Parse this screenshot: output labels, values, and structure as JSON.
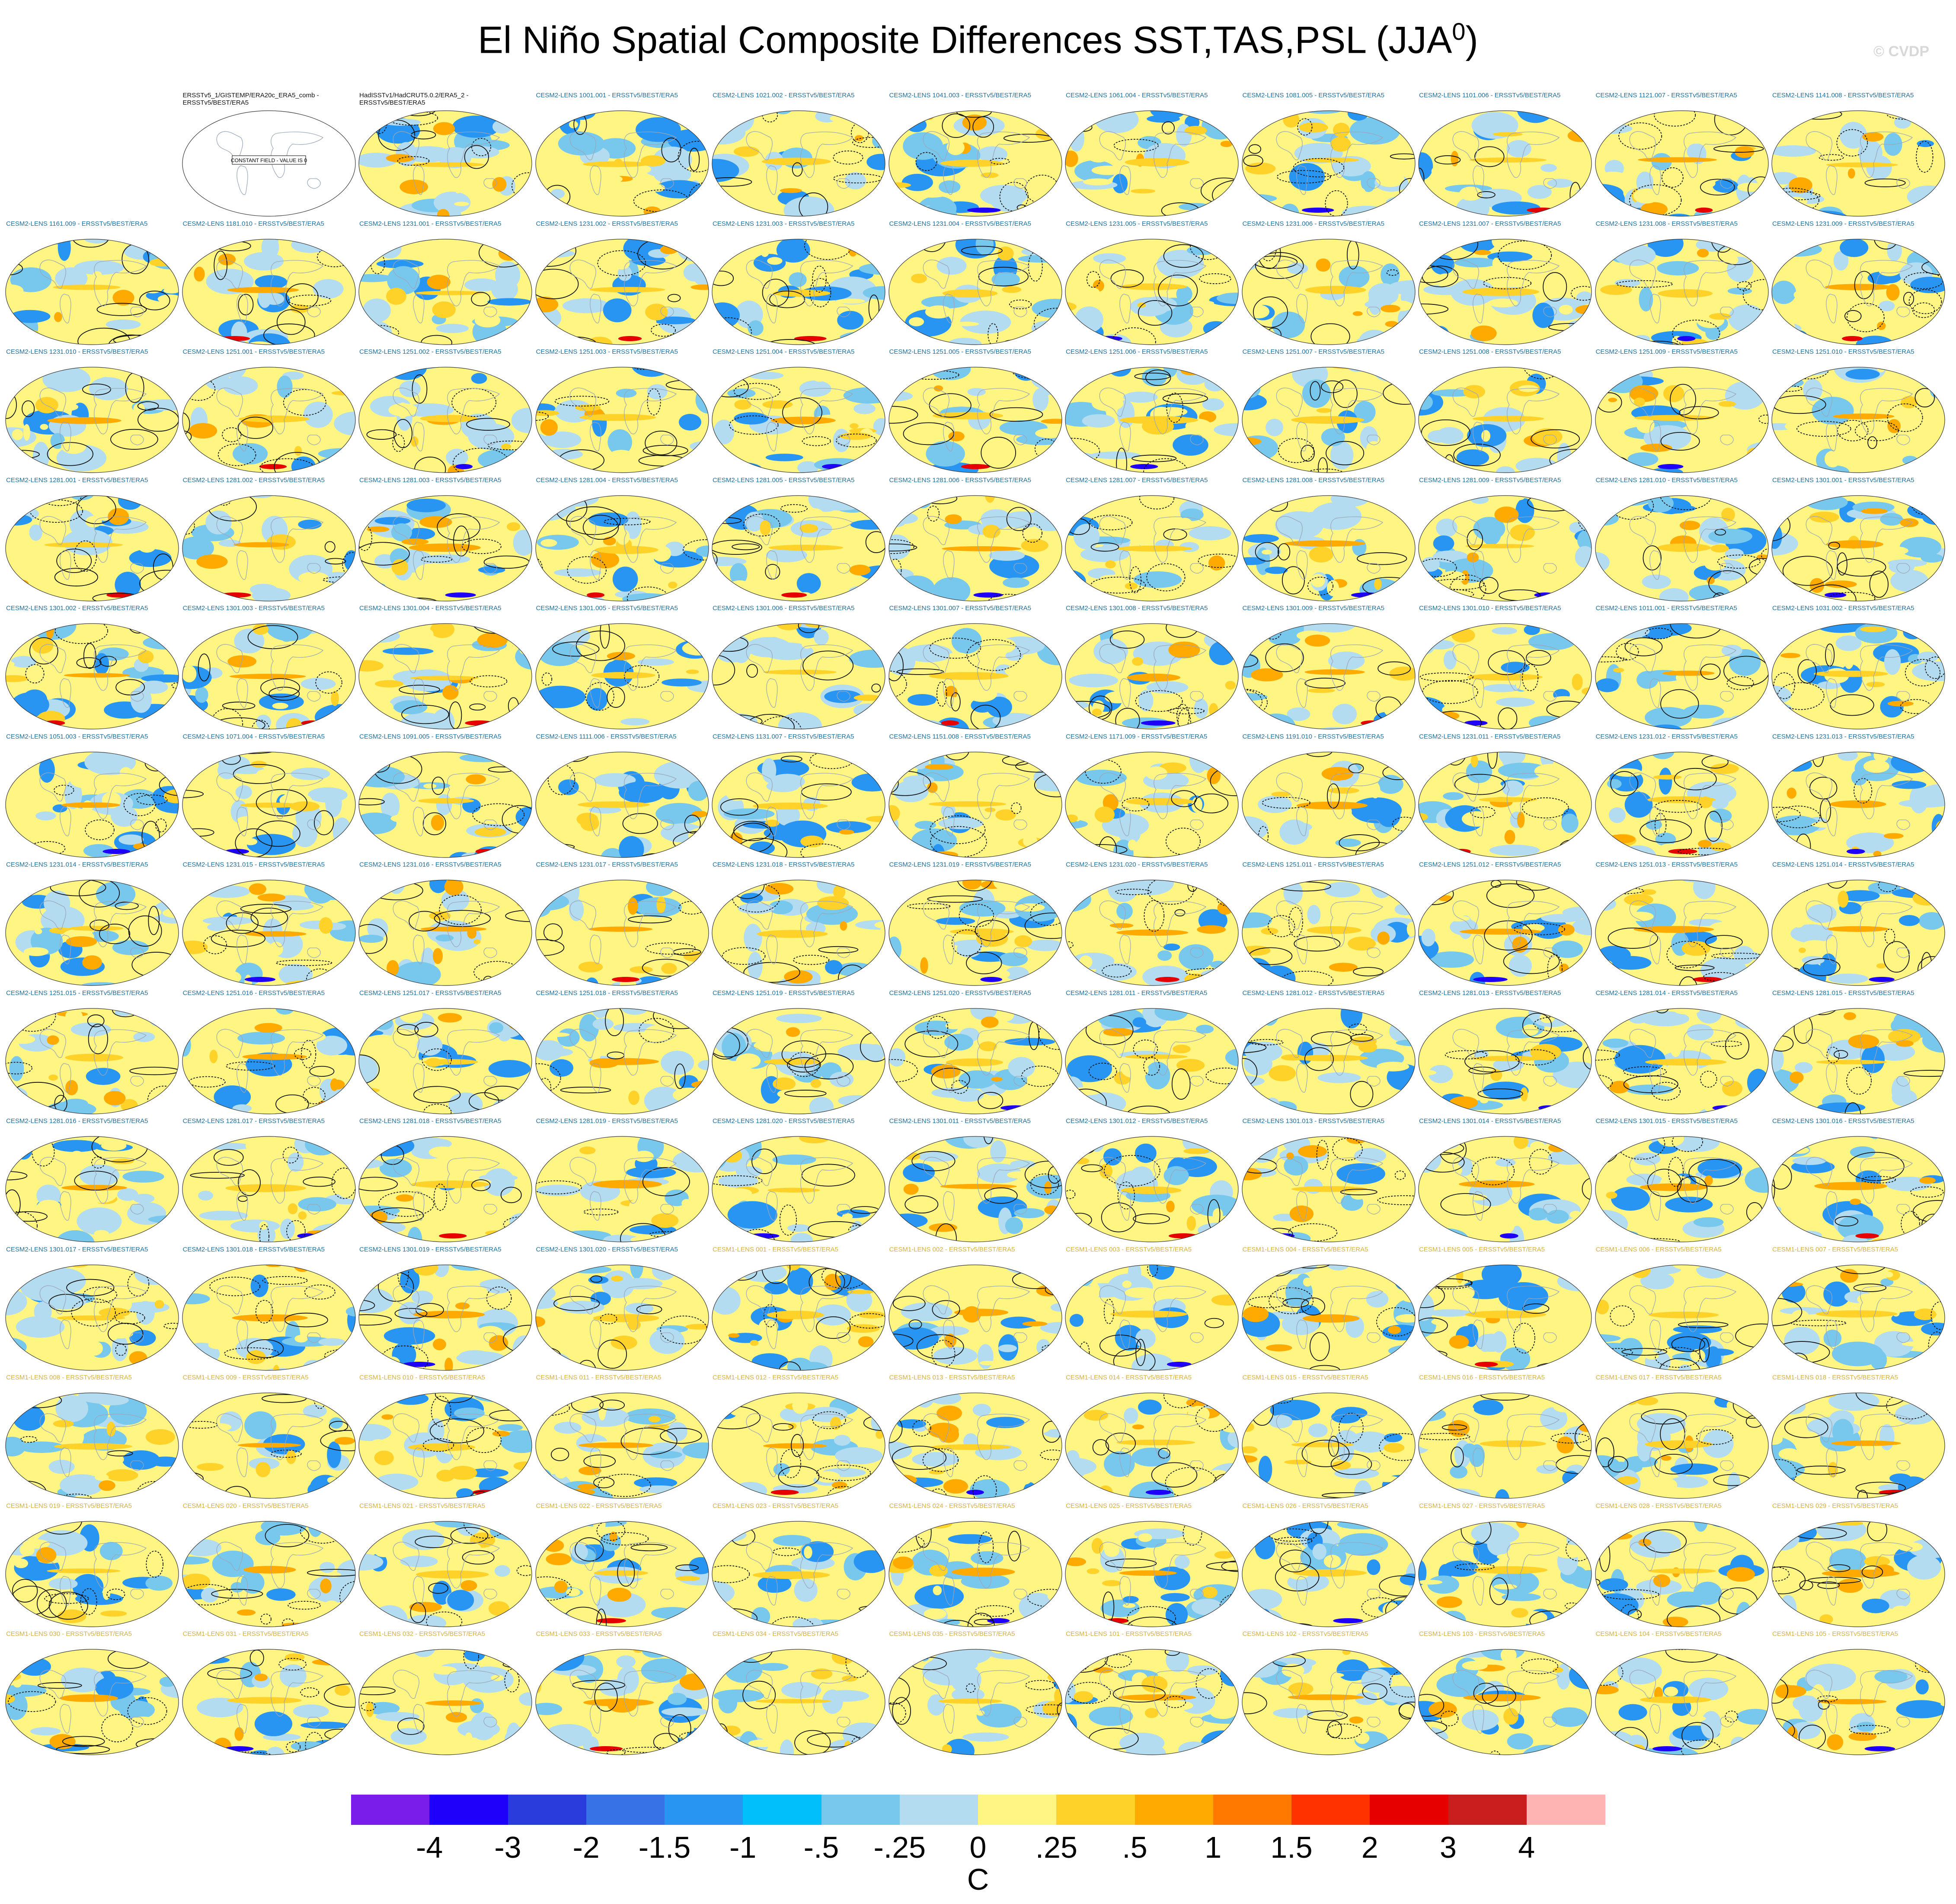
{
  "title": {
    "main": "El Niño Spatial Composite Differences SST,TAS,PSL (JJA",
    "sup": "0",
    "end": ")"
  },
  "watermark": "© CVDP",
  "chart_data": {
    "type": "heatmap",
    "title": "El Niño Spatial Composite Differences SST,TAS,PSL (JJA0)",
    "projection": "global Robinson map",
    "layout": {
      "columns": 11,
      "rows": 13
    },
    "panels": [
      {
        "label": "ERSSTv5_1/GISTEMP/ERA20c_ERA5_comb - ERSSTv5/BEST/ERA5",
        "kind": "obs",
        "note": "CONSTANT FIELD - VALUE IS 0"
      },
      {
        "label": "HadISSTv1/HadCRUT5.0.2/ERA5_2 - ERSSTv5/BEST/ERA5",
        "kind": "obs"
      },
      {
        "label": "CESM2-LENS 1001.001 - ERSSTv5/BEST/ERA5"
      },
      {
        "label": "CESM2-LENS 1021.002 - ERSSTv5/BEST/ERA5"
      },
      {
        "label": "CESM2-LENS 1041.003 - ERSSTv5/BEST/ERA5"
      },
      {
        "label": "CESM2-LENS 1061.004 - ERSSTv5/BEST/ERA5"
      },
      {
        "label": "CESM2-LENS 1081.005 - ERSSTv5/BEST/ERA5"
      },
      {
        "label": "CESM2-LENS 1101.006 - ERSSTv5/BEST/ERA5"
      },
      {
        "label": "CESM2-LENS 1121.007 - ERSSTv5/BEST/ERA5"
      },
      {
        "label": "CESM2-LENS 1141.008 - ERSSTv5/BEST/ERA5"
      },
      {
        "label": "CESM2-LENS 1161.009 - ERSSTv5/BEST/ERA5"
      },
      {
        "label": "CESM2-LENS 1181.010 - ERSSTv5/BEST/ERA5"
      },
      {
        "label": "CESM2-LENS 1231.001 - ERSSTv5/BEST/ERA5"
      },
      {
        "label": "CESM2-LENS 1231.002 - ERSSTv5/BEST/ERA5"
      },
      {
        "label": "CESM2-LENS 1231.003 - ERSSTv5/BEST/ERA5"
      },
      {
        "label": "CESM2-LENS 1231.004 - ERSSTv5/BEST/ERA5"
      },
      {
        "label": "CESM2-LENS 1231.005 - ERSSTv5/BEST/ERA5"
      },
      {
        "label": "CESM2-LENS 1231.006 - ERSSTv5/BEST/ERA5"
      },
      {
        "label": "CESM2-LENS 1231.007 - ERSSTv5/BEST/ERA5"
      },
      {
        "label": "CESM2-LENS 1231.008 - ERSSTv5/BEST/ERA5"
      },
      {
        "label": "CESM2-LENS 1231.009 - ERSSTv5/BEST/ERA5"
      },
      {
        "label": "CESM2-LENS 1231.010 - ERSSTv5/BEST/ERA5"
      },
      {
        "label": "CESM2-LENS 1251.001 - ERSSTv5/BEST/ERA5"
      },
      {
        "label": "CESM2-LENS 1251.002 - ERSSTv5/BEST/ERA5"
      },
      {
        "label": "CESM2-LENS 1251.003 - ERSSTv5/BEST/ERA5"
      },
      {
        "label": "CESM2-LENS 1251.004 - ERSSTv5/BEST/ERA5"
      },
      {
        "label": "CESM2-LENS 1251.005 - ERSSTv5/BEST/ERA5"
      },
      {
        "label": "CESM2-LENS 1251.006 - ERSSTv5/BEST/ERA5"
      },
      {
        "label": "CESM2-LENS 1251.007 - ERSSTv5/BEST/ERA5"
      },
      {
        "label": "CESM2-LENS 1251.008 - ERSSTv5/BEST/ERA5"
      },
      {
        "label": "CESM2-LENS 1251.009 - ERSSTv5/BEST/ERA5"
      },
      {
        "label": "CESM2-LENS 1251.010 - ERSSTv5/BEST/ERA5"
      },
      {
        "label": "CESM2-LENS 1281.001 - ERSSTv5/BEST/ERA5"
      },
      {
        "label": "CESM2-LENS 1281.002 - ERSSTv5/BEST/ERA5"
      },
      {
        "label": "CESM2-LENS 1281.003 - ERSSTv5/BEST/ERA5"
      },
      {
        "label": "CESM2-LENS 1281.004 - ERSSTv5/BEST/ERA5"
      },
      {
        "label": "CESM2-LENS 1281.005 - ERSSTv5/BEST/ERA5"
      },
      {
        "label": "CESM2-LENS 1281.006 - ERSSTv5/BEST/ERA5"
      },
      {
        "label": "CESM2-LENS 1281.007 - ERSSTv5/BEST/ERA5"
      },
      {
        "label": "CESM2-LENS 1281.008 - ERSSTv5/BEST/ERA5"
      },
      {
        "label": "CESM2-LENS 1281.009 - ERSSTv5/BEST/ERA5"
      },
      {
        "label": "CESM2-LENS 1281.010 - ERSSTv5/BEST/ERA5"
      },
      {
        "label": "CESM2-LENS 1301.001 - ERSSTv5/BEST/ERA5"
      },
      {
        "label": "CESM2-LENS 1301.002 - ERSSTv5/BEST/ERA5"
      },
      {
        "label": "CESM2-LENS 1301.003 - ERSSTv5/BEST/ERA5"
      },
      {
        "label": "CESM2-LENS 1301.004 - ERSSTv5/BEST/ERA5"
      },
      {
        "label": "CESM2-LENS 1301.005 - ERSSTv5/BEST/ERA5"
      },
      {
        "label": "CESM2-LENS 1301.006 - ERSSTv5/BEST/ERA5"
      },
      {
        "label": "CESM2-LENS 1301.007 - ERSSTv5/BEST/ERA5"
      },
      {
        "label": "CESM2-LENS 1301.008 - ERSSTv5/BEST/ERA5"
      },
      {
        "label": "CESM2-LENS 1301.009 - ERSSTv5/BEST/ERA5"
      },
      {
        "label": "CESM2-LENS 1301.010 - ERSSTv5/BEST/ERA5"
      },
      {
        "label": "CESM2-LENS 1011.001 - ERSSTv5/BEST/ERA5"
      },
      {
        "label": "CESM2-LENS 1031.002 - ERSSTv5/BEST/ERA5"
      },
      {
        "label": "CESM2-LENS 1051.003 - ERSSTv5/BEST/ERA5"
      },
      {
        "label": "CESM2-LENS 1071.004 - ERSSTv5/BEST/ERA5"
      },
      {
        "label": "CESM2-LENS 1091.005 - ERSSTv5/BEST/ERA5"
      },
      {
        "label": "CESM2-LENS 1111.006 - ERSSTv5/BEST/ERA5"
      },
      {
        "label": "CESM2-LENS 1131.007 - ERSSTv5/BEST/ERA5"
      },
      {
        "label": "CESM2-LENS 1151.008 - ERSSTv5/BEST/ERA5"
      },
      {
        "label": "CESM2-LENS 1171.009 - ERSSTv5/BEST/ERA5"
      },
      {
        "label": "CESM2-LENS 1191.010 - ERSSTv5/BEST/ERA5"
      },
      {
        "label": "CESM2-LENS 1231.011 - ERSSTv5/BEST/ERA5"
      },
      {
        "label": "CESM2-LENS 1231.012 - ERSSTv5/BEST/ERA5"
      },
      {
        "label": "CESM2-LENS 1231.013 - ERSSTv5/BEST/ERA5"
      },
      {
        "label": "CESM2-LENS 1231.014 - ERSSTv5/BEST/ERA5"
      },
      {
        "label": "CESM2-LENS 1231.015 - ERSSTv5/BEST/ERA5"
      },
      {
        "label": "CESM2-LENS 1231.016 - ERSSTv5/BEST/ERA5"
      },
      {
        "label": "CESM2-LENS 1231.017 - ERSSTv5/BEST/ERA5"
      },
      {
        "label": "CESM2-LENS 1231.018 - ERSSTv5/BEST/ERA5"
      },
      {
        "label": "CESM2-LENS 1231.019 - ERSSTv5/BEST/ERA5"
      },
      {
        "label": "CESM2-LENS 1231.020 - ERSSTv5/BEST/ERA5"
      },
      {
        "label": "CESM2-LENS 1251.011 - ERSSTv5/BEST/ERA5"
      },
      {
        "label": "CESM2-LENS 1251.012 - ERSSTv5/BEST/ERA5"
      },
      {
        "label": "CESM2-LENS 1251.013 - ERSSTv5/BEST/ERA5"
      },
      {
        "label": "CESM2-LENS 1251.014 - ERSSTv5/BEST/ERA5"
      },
      {
        "label": "CESM2-LENS 1251.015 - ERSSTv5/BEST/ERA5"
      },
      {
        "label": "CESM2-LENS 1251.016 - ERSSTv5/BEST/ERA5"
      },
      {
        "label": "CESM2-LENS 1251.017 - ERSSTv5/BEST/ERA5"
      },
      {
        "label": "CESM2-LENS 1251.018 - ERSSTv5/BEST/ERA5"
      },
      {
        "label": "CESM2-LENS 1251.019 - ERSSTv5/BEST/ERA5"
      },
      {
        "label": "CESM2-LENS 1251.020 - ERSSTv5/BEST/ERA5"
      },
      {
        "label": "CESM2-LENS 1281.011 - ERSSTv5/BEST/ERA5"
      },
      {
        "label": "CESM2-LENS 1281.012 - ERSSTv5/BEST/ERA5"
      },
      {
        "label": "CESM2-LENS 1281.013 - ERSSTv5/BEST/ERA5"
      },
      {
        "label": "CESM2-LENS 1281.014 - ERSSTv5/BEST/ERA5"
      },
      {
        "label": "CESM2-LENS 1281.015 - ERSSTv5/BEST/ERA5"
      },
      {
        "label": "CESM2-LENS 1281.016 - ERSSTv5/BEST/ERA5"
      },
      {
        "label": "CESM2-LENS 1281.017 - ERSSTv5/BEST/ERA5"
      },
      {
        "label": "CESM2-LENS 1281.018 - ERSSTv5/BEST/ERA5"
      },
      {
        "label": "CESM2-LENS 1281.019 - ERSSTv5/BEST/ERA5"
      },
      {
        "label": "CESM2-LENS 1281.020 - ERSSTv5/BEST/ERA5"
      },
      {
        "label": "CESM2-LENS 1301.011 - ERSSTv5/BEST/ERA5"
      },
      {
        "label": "CESM2-LENS 1301.012 - ERSSTv5/BEST/ERA5"
      },
      {
        "label": "CESM2-LENS 1301.013 - ERSSTv5/BEST/ERA5"
      },
      {
        "label": "CESM2-LENS 1301.014 - ERSSTv5/BEST/ERA5"
      },
      {
        "label": "CESM2-LENS 1301.015 - ERSSTv5/BEST/ERA5"
      },
      {
        "label": "CESM2-LENS 1301.016 - ERSSTv5/BEST/ERA5"
      },
      {
        "label": "CESM2-LENS 1301.017 - ERSSTv5/BEST/ERA5"
      },
      {
        "label": "CESM2-LENS 1301.018 - ERSSTv5/BEST/ERA5"
      },
      {
        "label": "CESM2-LENS 1301.019 - ERSSTv5/BEST/ERA5"
      },
      {
        "label": "CESM2-LENS 1301.020 - ERSSTv5/BEST/ERA5"
      },
      {
        "label": "CESM1-LENS 001 - ERSSTv5/BEST/ERA5",
        "kind": "c1"
      },
      {
        "label": "CESM1-LENS 002 - ERSSTv5/BEST/ERA5",
        "kind": "c1"
      },
      {
        "label": "CESM1-LENS 003 - ERSSTv5/BEST/ERA5",
        "kind": "c1"
      },
      {
        "label": "CESM1-LENS 004 - ERSSTv5/BEST/ERA5",
        "kind": "c1"
      },
      {
        "label": "CESM1-LENS 005 - ERSSTv5/BEST/ERA5",
        "kind": "c1"
      },
      {
        "label": "CESM1-LENS 006 - ERSSTv5/BEST/ERA5",
        "kind": "c1"
      },
      {
        "label": "CESM1-LENS 007 - ERSSTv5/BEST/ERA5",
        "kind": "c1"
      },
      {
        "label": "CESM1-LENS 008 - ERSSTv5/BEST/ERA5",
        "kind": "c1"
      },
      {
        "label": "CESM1-LENS 009 - ERSSTv5/BEST/ERA5",
        "kind": "c1"
      },
      {
        "label": "CESM1-LENS 010 - ERSSTv5/BEST/ERA5",
        "kind": "c1"
      },
      {
        "label": "CESM1-LENS 011 - ERSSTv5/BEST/ERA5",
        "kind": "c1"
      },
      {
        "label": "CESM1-LENS 012 - ERSSTv5/BEST/ERA5",
        "kind": "c1"
      },
      {
        "label": "CESM1-LENS 013 - ERSSTv5/BEST/ERA5",
        "kind": "c1"
      },
      {
        "label": "CESM1-LENS 014 - ERSSTv5/BEST/ERA5",
        "kind": "c1"
      },
      {
        "label": "CESM1-LENS 015 - ERSSTv5/BEST/ERA5",
        "kind": "c1"
      },
      {
        "label": "CESM1-LENS 016 - ERSSTv5/BEST/ERA5",
        "kind": "c1"
      },
      {
        "label": "CESM1-LENS 017 - ERSSTv5/BEST/ERA5",
        "kind": "c1"
      },
      {
        "label": "CESM1-LENS 018 - ERSSTv5/BEST/ERA5",
        "kind": "c1"
      },
      {
        "label": "CESM1-LENS 019 - ERSSTv5/BEST/ERA5",
        "kind": "c1"
      },
      {
        "label": "CESM1-LENS 020 - ERSSTv5/BEST/ERA5",
        "kind": "c1"
      },
      {
        "label": "CESM1-LENS 021 - ERSSTv5/BEST/ERA5",
        "kind": "c1"
      },
      {
        "label": "CESM1-LENS 022 - ERSSTv5/BEST/ERA5",
        "kind": "c1"
      },
      {
        "label": "CESM1-LENS 023 - ERSSTv5/BEST/ERA5",
        "kind": "c1"
      },
      {
        "label": "CESM1-LENS 024 - ERSSTv5/BEST/ERA5",
        "kind": "c1"
      },
      {
        "label": "CESM1-LENS 025 - ERSSTv5/BEST/ERA5",
        "kind": "c1"
      },
      {
        "label": "CESM1-LENS 026 - ERSSTv5/BEST/ERA5",
        "kind": "c1"
      },
      {
        "label": "CESM1-LENS 027 - ERSSTv5/BEST/ERA5",
        "kind": "c1"
      },
      {
        "label": "CESM1-LENS 028 - ERSSTv5/BEST/ERA5",
        "kind": "c1"
      },
      {
        "label": "CESM1-LENS 029 - ERSSTv5/BEST/ERA5",
        "kind": "c1"
      },
      {
        "label": "CESM1-LENS 030 - ERSSTv5/BEST/ERA5",
        "kind": "c1"
      },
      {
        "label": "CESM1-LENS 031 - ERSSTv5/BEST/ERA5",
        "kind": "c1"
      },
      {
        "label": "CESM1-LENS 032 - ERSSTv5/BEST/ERA5",
        "kind": "c1"
      },
      {
        "label": "CESM1-LENS 033 - ERSSTv5/BEST/ERA5",
        "kind": "c1"
      },
      {
        "label": "CESM1-LENS 034 - ERSSTv5/BEST/ERA5",
        "kind": "c1"
      },
      {
        "label": "CESM1-LENS 035 - ERSSTv5/BEST/ERA5",
        "kind": "c1"
      },
      {
        "label": "CESM1-LENS 101 - ERSSTv5/BEST/ERA5",
        "kind": "c1"
      },
      {
        "label": "CESM1-LENS 102 - ERSSTv5/BEST/ERA5",
        "kind": "c1"
      },
      {
        "label": "CESM1-LENS 103 - ERSSTv5/BEST/ERA5",
        "kind": "c1"
      },
      {
        "label": "CESM1-LENS 104 - ERSSTv5/BEST/ERA5",
        "kind": "c1"
      },
      {
        "label": "CESM1-LENS 105 - ERSSTv5/BEST/ERA5",
        "kind": "c1"
      }
    ],
    "colorbar": {
      "colors": [
        "#7a1cea",
        "#1e00fa",
        "#2a3cdc",
        "#3773e6",
        "#2995f2",
        "#00bffa",
        "#78c8ee",
        "#b4dcf0",
        "#fff582",
        "#ffd22a",
        "#ffaa00",
        "#ff7800",
        "#ff3200",
        "#e60000",
        "#c81e1e",
        "#ffb4b4"
      ],
      "ticks": [
        "-4",
        "-3",
        "-2",
        "-1.5",
        "-1",
        "-.5",
        "-.25",
        "0",
        ".25",
        ".5",
        "1",
        "1.5",
        "2",
        "3",
        "4"
      ],
      "units": "C"
    }
  }
}
